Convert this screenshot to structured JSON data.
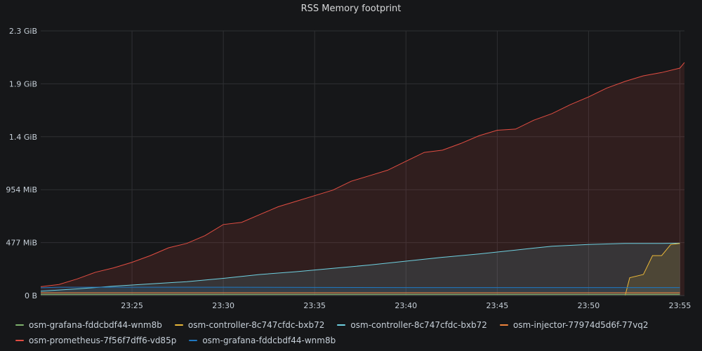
{
  "panel": {
    "title": "RSS Memory footprint"
  },
  "chart_data": {
    "type": "area",
    "title": "RSS Memory footprint",
    "y_unit": "MiB",
    "y_tick_labels": [
      "0 B",
      "477 MiB",
      "954 MiB",
      "1.4 GiB",
      "1.9 GiB",
      "2.3 GiB"
    ],
    "y_tick_values": [
      0,
      477,
      954,
      1431,
      1908,
      2385
    ],
    "ylim": [
      0,
      2385
    ],
    "x_tick_labels": [
      "23:25",
      "23:30",
      "23:35",
      "23:40",
      "23:45",
      "23:50",
      "23:55"
    ],
    "x_tick_values": [
      "23:25",
      "23:30",
      "23:35",
      "23:40",
      "23:45",
      "23:50",
      "23:55"
    ],
    "xlim": [
      "23:20:00",
      "23:55:15"
    ],
    "grid": true,
    "legend_placement": "bottom",
    "series": [
      {
        "name": "osm-grafana-fddcbdf44-wnm8b",
        "color": "#7eb26d",
        "x": [
          "23:20",
          "23:30",
          "23:40",
          "23:50",
          "23:55"
        ],
        "values": [
          10,
          10,
          10,
          10,
          10
        ]
      },
      {
        "name": "osm-controller-8c747cfdc-bxb72",
        "color": "#eab839",
        "x": [
          "23:20",
          "23:52",
          "23:52:15",
          "23:53",
          "23:53:30",
          "23:54",
          "23:54:30",
          "23:55"
        ],
        "values": [
          0,
          0,
          160,
          190,
          360,
          360,
          460,
          470
        ]
      },
      {
        "name": "osm-controller-8c747cfdc-bxb72",
        "color": "#6ed0e0",
        "x": [
          "23:20",
          "23:22",
          "23:24",
          "23:26",
          "23:28",
          "23:30",
          "23:32",
          "23:34",
          "23:36",
          "23:38",
          "23:40",
          "23:42",
          "23:44",
          "23:46",
          "23:48",
          "23:50",
          "23:52",
          "23:54",
          "23:55"
        ],
        "values": [
          40,
          60,
          85,
          105,
          125,
          155,
          190,
          215,
          245,
          275,
          310,
          345,
          375,
          410,
          445,
          460,
          470,
          470,
          472
        ]
      },
      {
        "name": "osm-injector-77974d5d6f-77vq2",
        "color": "#ef843c",
        "x": [
          "23:20",
          "23:30",
          "23:40",
          "23:50",
          "23:55"
        ],
        "values": [
          25,
          25,
          25,
          25,
          25
        ]
      },
      {
        "name": "osm-prometheus-7f56f7dff6-vd85p",
        "color": "#e24d42",
        "x": [
          "23:20",
          "23:21",
          "23:22",
          "23:23",
          "23:24",
          "23:25",
          "23:26",
          "23:27",
          "23:28",
          "23:29",
          "23:30",
          "23:31",
          "23:32",
          "23:33",
          "23:34",
          "23:35",
          "23:36",
          "23:37",
          "23:38",
          "23:39",
          "23:40",
          "23:41",
          "23:42",
          "23:43",
          "23:44",
          "23:45",
          "23:46",
          "23:47",
          "23:48",
          "23:49",
          "23:50",
          "23:51",
          "23:52",
          "23:53",
          "23:54",
          "23:55",
          "23:55:15"
        ],
        "values": [
          80,
          100,
          150,
          210,
          250,
          300,
          360,
          430,
          470,
          540,
          640,
          660,
          730,
          800,
          850,
          900,
          950,
          1030,
          1080,
          1130,
          1210,
          1290,
          1310,
          1370,
          1440,
          1490,
          1500,
          1580,
          1640,
          1720,
          1790,
          1870,
          1930,
          1980,
          2010,
          2050,
          2100
        ]
      },
      {
        "name": "osm-grafana-fddcbdf44-wnm8b",
        "color": "#1f78c1",
        "x": [
          "23:20",
          "23:21",
          "23:22",
          "23:30",
          "23:40",
          "23:50",
          "23:55"
        ],
        "values": [
          70,
          75,
          75,
          75,
          72,
          72,
          72
        ]
      }
    ]
  },
  "legend": {
    "rows": [
      [
        {
          "label": "osm-grafana-fddcbdf44-wnm8b",
          "color": "#7eb26d"
        },
        {
          "label": "osm-controller-8c747cfdc-bxb72",
          "color": "#eab839"
        },
        {
          "label": "osm-controller-8c747cfdc-bxb72",
          "color": "#6ed0e0"
        },
        {
          "label": "osm-injector-77974d5d6f-77vq2",
          "color": "#ef843c"
        }
      ],
      [
        {
          "label": "osm-prometheus-7f56f7dff6-vd85p",
          "color": "#e24d42"
        },
        {
          "label": "osm-grafana-fddcbdf44-wnm8b",
          "color": "#1f78c1"
        }
      ]
    ]
  }
}
